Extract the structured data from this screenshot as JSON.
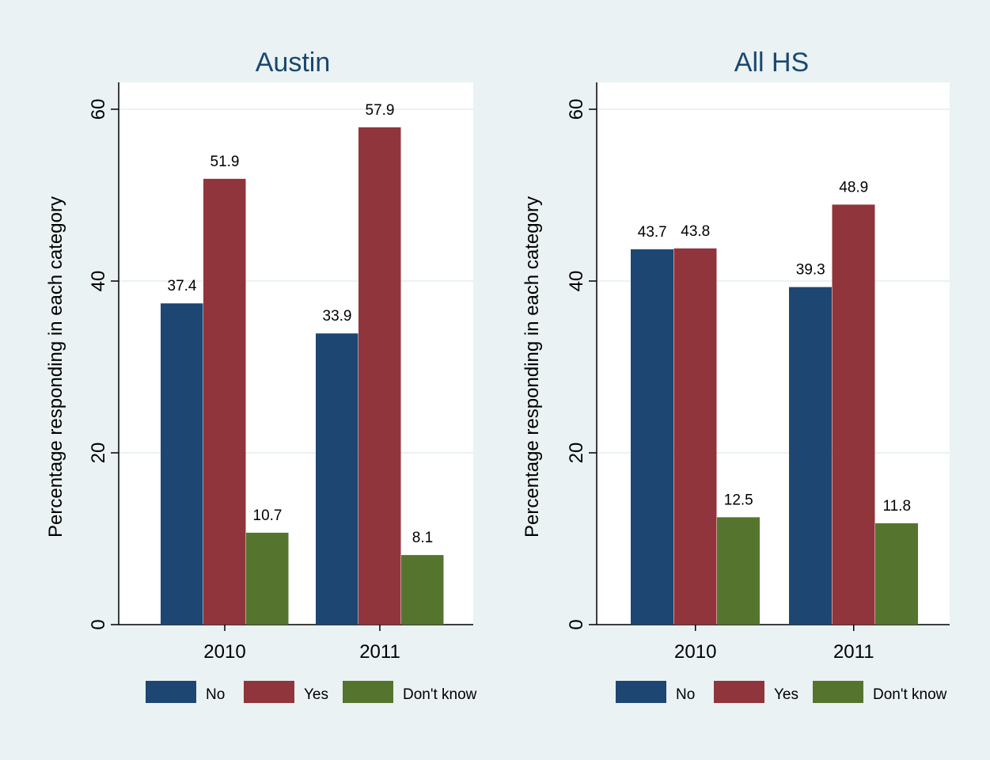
{
  "colors": {
    "background": "#eaf2f3",
    "plot_background": "#ffffff",
    "gridline": "#eaf2f3",
    "no": "#1d4772",
    "yes": "#90353b",
    "dont_know": "#55752f",
    "title": "#1a476f",
    "axis": "#000000"
  },
  "chart_data": [
    {
      "type": "bar",
      "title": "Austin",
      "ylabel": "Percentage responding in each category",
      "xlabel": "",
      "categories": [
        "2010",
        "2011"
      ],
      "ylim": [
        0,
        60
      ],
      "yticks": [
        0,
        20,
        40,
        60
      ],
      "grid": true,
      "legend_position": "bottom",
      "series": [
        {
          "name": "No",
          "color_key": "no",
          "values": [
            37.4,
            33.9
          ]
        },
        {
          "name": "Yes",
          "color_key": "yes",
          "values": [
            51.9,
            57.9
          ]
        },
        {
          "name": "Don't know",
          "color_key": "dont_know",
          "values": [
            10.7,
            8.1
          ]
        }
      ]
    },
    {
      "type": "bar",
      "title": "All HS",
      "ylabel": "Percentage responding in each category",
      "xlabel": "",
      "categories": [
        "2010",
        "2011"
      ],
      "ylim": [
        0,
        60
      ],
      "yticks": [
        0,
        20,
        40,
        60
      ],
      "grid": true,
      "legend_position": "bottom",
      "series": [
        {
          "name": "No",
          "color_key": "no",
          "values": [
            43.7,
            39.3
          ]
        },
        {
          "name": "Yes",
          "color_key": "yes",
          "values": [
            43.8,
            48.9
          ]
        },
        {
          "name": "Don't know",
          "color_key": "dont_know",
          "values": [
            12.5,
            11.8
          ]
        }
      ]
    }
  ]
}
